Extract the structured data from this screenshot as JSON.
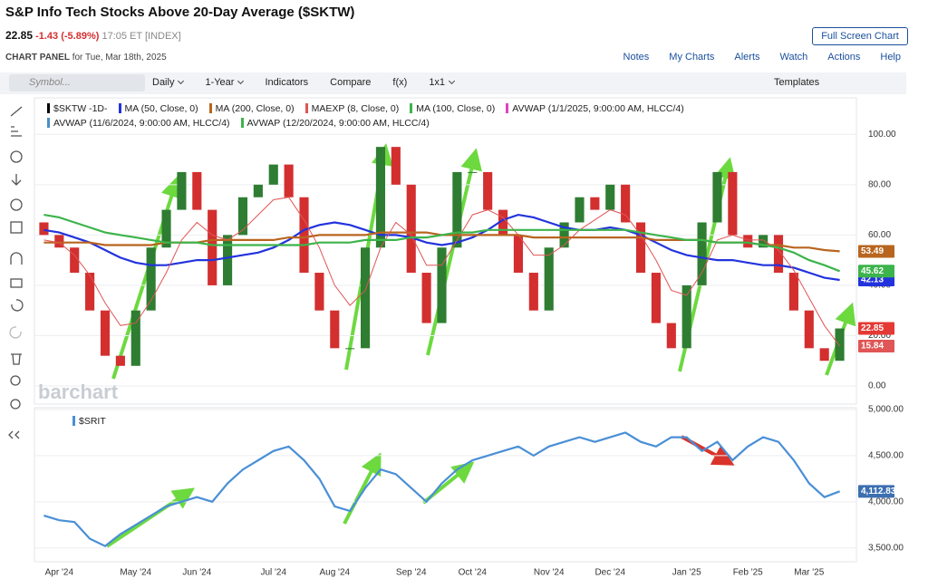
{
  "header": {
    "title": "S&P Info Tech Stocks Above 20-Day Average ($SKTW)",
    "last": "22.85",
    "change": "-1.43 (-5.89%)",
    "time": "17:05 ET [INDEX]",
    "panel": "CHART PANEL",
    "date": "for Tue, Mar 18th, 2025",
    "fullscreen": "Full Screen Chart",
    "links": [
      "Notes",
      "My Charts",
      "Alerts",
      "Watch",
      "Actions",
      "Help"
    ]
  },
  "toolbar": {
    "symbol": "Symbol...",
    "items": [
      "Daily",
      "1-Year",
      "Indicators",
      "Compare",
      "f(x)",
      "1x1"
    ],
    "templates": "Templates"
  },
  "watermark": "barchart",
  "chart_data": [
    {
      "type": "candlestick",
      "ylim": [
        -7.2,
        114.5
      ],
      "grid": true,
      "up_color": "#2e7d32",
      "down_color": "#d32f2f",
      "yticks": [
        {
          "value": 0,
          "label": "0.00"
        },
        {
          "value": 20,
          "label": "20.00"
        },
        {
          "value": 40,
          "label": "40.00"
        },
        {
          "value": 60,
          "label": "60.00"
        },
        {
          "value": 80,
          "label": "80.00"
        },
        {
          "value": 100,
          "label": "100.00"
        }
      ],
      "series": [
        {
          "name": "$SKTW -1D-",
          "color": "#000000",
          "badge_color": "#e53935",
          "open": [
            65,
            60,
            55,
            45,
            30,
            12,
            8,
            30,
            55,
            70,
            85,
            70,
            40,
            60,
            75,
            80,
            88,
            75,
            45,
            30,
            15,
            15,
            55,
            95,
            80,
            45,
            25,
            55,
            85,
            85,
            70,
            60,
            45,
            30,
            55,
            65,
            75,
            70,
            80,
            65,
            45,
            25,
            15,
            40,
            65,
            85,
            60,
            55,
            60,
            45,
            30,
            15,
            10
          ],
          "values": [
            60,
            55,
            45,
            30,
            12,
            8,
            30,
            55,
            70,
            85,
            70,
            40,
            60,
            75,
            80,
            88,
            75,
            45,
            30,
            15,
            15,
            55,
            95,
            80,
            45,
            25,
            55,
            85,
            85,
            70,
            60,
            45,
            30,
            55,
            65,
            75,
            70,
            80,
            65,
            45,
            25,
            15,
            40,
            65,
            85,
            60,
            55,
            60,
            45,
            30,
            15,
            10,
            22.85
          ]
        },
        {
          "name": "MA (50, Close, 0)",
          "color": "#2233dd",
          "values": [
            62,
            61,
            59,
            57,
            54,
            51,
            49,
            48,
            48,
            49,
            50,
            50,
            51,
            52,
            53,
            55,
            58,
            62,
            64,
            65,
            64,
            62,
            60,
            60,
            59,
            57,
            56,
            57,
            59,
            62,
            66,
            68,
            67,
            65,
            63,
            62,
            62,
            63,
            62,
            60,
            57,
            54,
            52,
            51,
            50,
            50,
            49,
            48,
            48,
            47,
            45,
            43,
            42.13
          ]
        },
        {
          "name": "MA (200, Close, 0)",
          "color": "#b8651f",
          "values": [
            57,
            57,
            57,
            57,
            56,
            56,
            56,
            56,
            57,
            57,
            57,
            58,
            58,
            58,
            58,
            58,
            59,
            59,
            60,
            60,
            60,
            60,
            61,
            61,
            61,
            61,
            60,
            60,
            60,
            60,
            60,
            60,
            59,
            59,
            59,
            59,
            59,
            59,
            59,
            59,
            58,
            58,
            58,
            58,
            57,
            57,
            57,
            56,
            56,
            55,
            55,
            54,
            53.49
          ]
        },
        {
          "name": "MAEXP (8, Close, 0)",
          "color": "#e05555",
          "values": [
            58,
            57,
            52,
            44,
            33,
            24,
            25,
            34,
            45,
            58,
            65,
            60,
            58,
            62,
            68,
            74,
            75,
            66,
            55,
            40,
            32,
            38,
            55,
            65,
            60,
            48,
            48,
            58,
            68,
            70,
            67,
            60,
            52,
            52,
            56,
            62,
            66,
            70,
            68,
            60,
            50,
            38,
            36,
            45,
            58,
            60,
            58,
            58,
            54,
            46,
            35,
            24,
            15.84
          ]
        },
        {
          "name": "MA (100, Close, 0)",
          "color": "#3cb44b",
          "values": [
            68,
            67,
            65,
            63,
            61,
            60,
            59,
            58,
            57,
            57,
            57,
            56,
            56,
            56,
            56,
            56,
            56,
            56,
            57,
            57,
            57,
            58,
            58,
            58,
            59,
            59,
            60,
            61,
            61,
            62,
            62,
            62,
            62,
            62,
            62,
            62,
            62,
            62,
            62,
            61,
            60,
            59,
            58,
            58,
            57,
            57,
            57,
            56,
            55,
            53,
            50,
            48,
            45.62
          ]
        }
      ],
      "indicators": [
        {
          "name": "AVWAP (1/1/2025, 9:00:00 AM, HLCC/4)",
          "color": "#e040c0"
        },
        {
          "name": "AVWAP (11/6/2024, 9:00:00 AM, HLCC/4)",
          "color": "#4a8fc4"
        },
        {
          "name": "AVWAP (12/20/2024, 9:00:00 AM, HLCC/4)",
          "color": "#3cb44b"
        }
      ]
    },
    {
      "type": "line",
      "ylim": [
        3350,
        5020
      ],
      "grid": true,
      "yticks": [
        {
          "value": 3500,
          "label": "3,500.00"
        },
        {
          "value": 4000,
          "label": "4,000.00"
        },
        {
          "value": 4500,
          "label": "4,500.00"
        },
        {
          "value": 5000,
          "label": "5,000.00"
        }
      ],
      "categories": [
        null,
        "Apr '24",
        null,
        null,
        null,
        null,
        "May '24",
        null,
        null,
        null,
        "Jun '24",
        null,
        null,
        null,
        null,
        "Jul '24",
        null,
        null,
        null,
        "Aug '24",
        null,
        null,
        null,
        null,
        "Sep '24",
        null,
        null,
        null,
        "Oct '24",
        null,
        null,
        null,
        null,
        "Nov '24",
        null,
        null,
        null,
        "Dec '24",
        null,
        null,
        null,
        null,
        "Jan '25",
        null,
        null,
        null,
        "Feb '25",
        null,
        null,
        null,
        "Mar '25",
        null,
        null
      ],
      "series": [
        {
          "name": "$SRIT",
          "color": "#4a8fd6",
          "badge_color": "#3d6fb0",
          "values": [
            3850,
            3800,
            3780,
            3600,
            3520,
            3650,
            3750,
            3850,
            3950,
            4000,
            4050,
            4000,
            4200,
            4350,
            4450,
            4550,
            4600,
            4450,
            4250,
            3950,
            3900,
            4150,
            4350,
            4300,
            4150,
            4000,
            4200,
            4350,
            4450,
            4500,
            4550,
            4600,
            4500,
            4600,
            4650,
            4700,
            4650,
            4700,
            4750,
            4650,
            4600,
            4700,
            4700,
            4550,
            4650,
            4450,
            4600,
            4700,
            4650,
            4450,
            4200,
            4050,
            4112.83
          ],
          "value_labels": [
            null,
            null,
            null,
            null,
            null,
            null,
            null,
            null,
            null,
            null,
            null,
            null,
            null,
            null,
            null,
            null,
            null,
            null,
            null,
            null,
            null,
            null,
            null,
            null,
            null,
            null,
            null,
            null,
            null,
            null,
            null,
            null,
            null,
            null,
            null,
            null,
            null,
            null,
            null,
            null,
            null,
            null,
            null,
            null,
            null,
            null,
            null,
            null,
            null,
            null,
            null,
            null,
            "4,112.83"
          ]
        }
      ]
    }
  ]
}
